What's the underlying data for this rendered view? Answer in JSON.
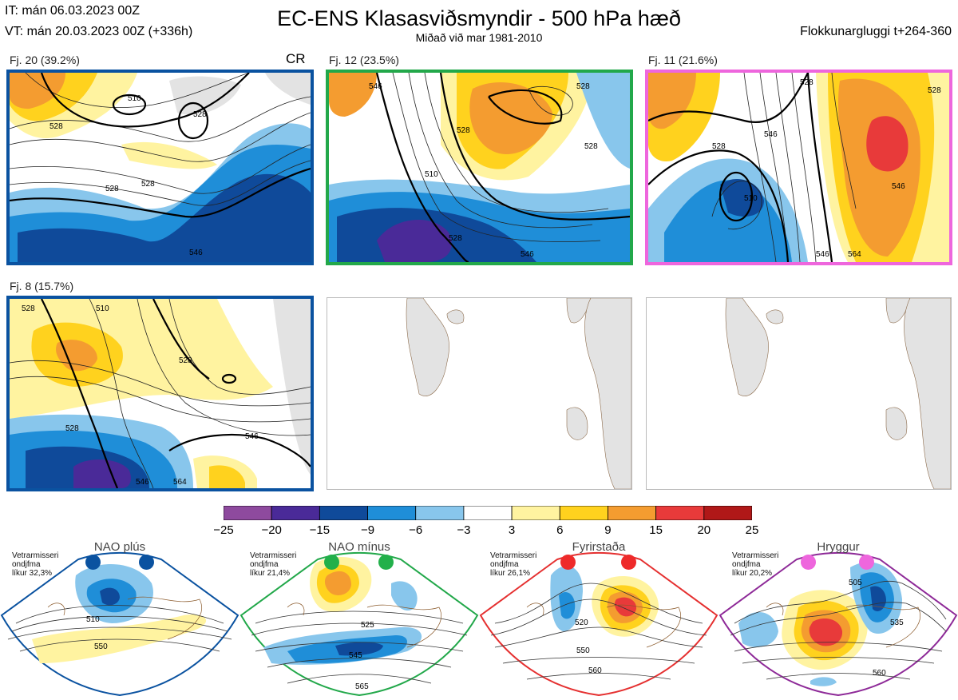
{
  "header": {
    "it_line": "IT: mán 06.03.2023 00Z",
    "vt_line": "VT: mán 20.03.2023 00Z  (+336h)",
    "title": "EC-ENS Klasasviðsmyndir - 500 hPa hæð",
    "subtitle": "Miðað við mar 1981-2010",
    "window": "Flokkunargluggi t+264-360"
  },
  "clusters": [
    {
      "label": "Fj. 20 (39.2%)",
      "tag": "CR",
      "border_color": "#0a52a0",
      "contours": [
        "528",
        "510",
        "528",
        "528",
        "528",
        "546"
      ]
    },
    {
      "label": "Fj. 12 (23.5%)",
      "tag": "",
      "border_color": "#22a84a",
      "contours": [
        "546",
        "528",
        "528",
        "510",
        "528",
        "528",
        "546"
      ]
    },
    {
      "label": "Fj. 11 (21.6%)",
      "tag": "",
      "border_color": "#ee66dd",
      "contours": [
        "528",
        "510",
        "528",
        "546",
        "546",
        "528",
        "546",
        "564"
      ]
    },
    {
      "label": "Fj. 8 (15.7%)",
      "tag": "",
      "border_color": "#0a52a0",
      "contours": [
        "528",
        "510",
        "528",
        "528",
        "546",
        "546",
        "564"
      ]
    }
  ],
  "colorbar": {
    "ticks": [
      "−25",
      "−20",
      "−15",
      "−9",
      "−6",
      "−3",
      "3",
      "6",
      "9",
      "15",
      "20",
      "25"
    ],
    "colors": [
      "#8e4a9e",
      "#4a2a98",
      "#0f4a9a",
      "#1f8ed8",
      "#88c6ec",
      "#ffffff",
      "#fff3a0",
      "#ffd21e",
      "#f49c30",
      "#e83a3a",
      "#b01818"
    ]
  },
  "regimes": [
    {
      "name": "NAO plús",
      "info": [
        "Vetrarmisseri",
        "ondjfma",
        "líkur 32,3%"
      ],
      "color": "#0a52a0",
      "dot_color": "#0a52a0",
      "contours": [
        "510",
        "550"
      ]
    },
    {
      "name": "NAO mínus",
      "info": [
        "Vetrarmisseri",
        "ondjfma",
        "líkur 21,4%"
      ],
      "color": "#22a84a",
      "dot_color": "#22b04a",
      "contours": [
        "525",
        "545",
        "565"
      ]
    },
    {
      "name": "Fyrirstaða",
      "info": [
        "Vetrarmisseri",
        "ondjfma",
        "líkur 26,1%"
      ],
      "color": "#e53030",
      "dot_color": "#ee2a2a",
      "contours": [
        "520",
        "550",
        "560"
      ]
    },
    {
      "name": "Hryggur",
      "info": [
        "Vetrarmisseri",
        "ondjfma",
        "líkur 20,2%"
      ],
      "color": "#8e2a98",
      "dot_color": "#ee66dd",
      "contours": [
        "505",
        "535",
        "560"
      ]
    }
  ]
}
